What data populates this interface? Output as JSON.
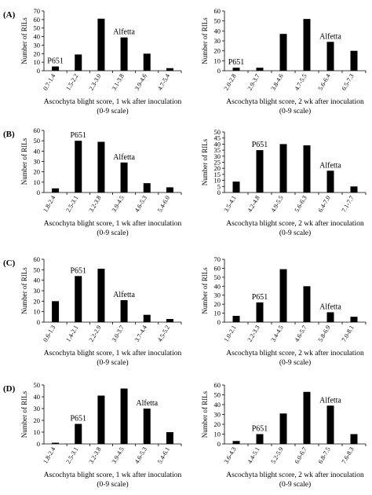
{
  "chart_data": [
    {
      "type": "bar",
      "row_label": "(A)",
      "categories": [
        "0.7-1.4",
        "1.5-2.2",
        "2.3-3.0",
        "3.1-3.8",
        "3.9-4.6",
        "4.7-5.4"
      ],
      "values": [
        5,
        19,
        61,
        39,
        20,
        3
      ],
      "ylim": [
        0,
        70
      ],
      "yticks": [
        0,
        10,
        20,
        30,
        40,
        50,
        60,
        70
      ],
      "ylabel": "Number of RILs",
      "xlabel_line1": "Ascochyta blight score, 1 wk after inoculation",
      "xlabel_line2": "(0-9 scale)",
      "annotations": [
        {
          "text": "P651",
          "category": "0.7-1.4"
        },
        {
          "text": "Alfetta",
          "category": "3.1-3.8"
        }
      ]
    },
    {
      "type": "bar",
      "row_label": "",
      "categories": [
        "2.0-2.8",
        "2.9-3.7",
        "3.8-4.6",
        "4.7-5.5",
        "5.6-6.4",
        "6.5-7.3"
      ],
      "values": [
        3,
        3,
        37,
        52,
        29,
        20
      ],
      "ylim": [
        0,
        60
      ],
      "yticks": [
        0,
        10,
        20,
        30,
        40,
        50,
        60
      ],
      "ylabel": "Number of RILs",
      "xlabel_line1": "Ascochyta blight score, 2 wk after inoculation",
      "xlabel_line2": "(0-9 scale)",
      "annotations": [
        {
          "text": "P651",
          "category": "2.0-2.8"
        },
        {
          "text": "Alfetta",
          "category": "5.6-6.4"
        }
      ]
    },
    {
      "type": "bar",
      "row_label": "(B)",
      "categories": [
        "1.8-2.4",
        "2.5-3.1",
        "3.2-3.8",
        "3.9-4.5",
        "4.6-5.3",
        "5.4-6.0"
      ],
      "values": [
        4,
        50,
        49,
        29,
        9,
        5
      ],
      "ylim": [
        0,
        60
      ],
      "yticks": [
        0,
        10,
        20,
        30,
        40,
        50,
        60
      ],
      "ylabel": "Number of RILs",
      "xlabel_line1": "Ascochyta blight score, 1 wk after inoculation",
      "xlabel_line2": "(0-9 scale)",
      "annotations": [
        {
          "text": "P651",
          "category": "2.5-3.1"
        },
        {
          "text": "Alfetta",
          "category": "3.9-4.5"
        }
      ]
    },
    {
      "type": "bar",
      "row_label": "",
      "categories": [
        "3.5-4.1",
        "4.2-4.8",
        "4.9-5.5",
        "5.6-6.3",
        "6.4-7.0",
        "7.1-7.7"
      ],
      "values": [
        9,
        35,
        40,
        39,
        18,
        5
      ],
      "ylim": [
        0,
        50
      ],
      "yticks": [
        0,
        5,
        10,
        15,
        20,
        25,
        30,
        35,
        40,
        45,
        50
      ],
      "ylabel": "Number of RILs",
      "xlabel_line1": "Ascochyta blight score, 2 wk after inoculation",
      "xlabel_line2": "(0-9 scale)",
      "annotations": [
        {
          "text": "P651",
          "category": "4.2-4.8"
        },
        {
          "text": "Alfetta",
          "category": "6.4-7.0"
        }
      ]
    },
    {
      "type": "bar",
      "row_label": "(C)",
      "categories": [
        "0.6-1.3",
        "1.4-2.1",
        "2.2-2.9",
        "3.0-3.7",
        "3.7-4.4",
        "4.5-5.2"
      ],
      "values": [
        20,
        44,
        51,
        21,
        7,
        3
      ],
      "ylim": [
        0,
        60
      ],
      "yticks": [
        0,
        10,
        20,
        30,
        40,
        50,
        60
      ],
      "ylabel": "Number of RILs",
      "xlabel_line1": "Ascochyta blight score, 1 wk after inoculation",
      "xlabel_line2": "(0-9 scale)",
      "annotations": [
        {
          "text": "P651",
          "category": "1.4-2.1"
        },
        {
          "text": "Alfetta",
          "category": "3.0-3.7"
        }
      ]
    },
    {
      "type": "bar",
      "row_label": "",
      "categories": [
        "1.0-2.1",
        "2.2-3.3",
        "3.4-4.5",
        "4.6-5.7",
        "5.8-6.9",
        "7.0-8.1"
      ],
      "values": [
        7,
        22,
        59,
        40,
        11,
        6
      ],
      "ylim": [
        0,
        70
      ],
      "yticks": [
        0,
        10,
        20,
        30,
        40,
        50,
        60,
        70
      ],
      "ylabel": "Number of RILs",
      "xlabel_line1": "Ascochyta blight score, 2 wk after inoculation",
      "xlabel_line2": "(0-9 scale)",
      "annotations": [
        {
          "text": "P651",
          "category": "2.2-3.3"
        },
        {
          "text": "Alfetta",
          "category": "5.8-6.9"
        }
      ]
    },
    {
      "type": "bar",
      "row_label": "(D)",
      "categories": [
        "1.8-2.4",
        "2.5-3.1",
        "3.2-3.8",
        "3.9-4.5",
        "4.6-5.3",
        "5.4-6.1"
      ],
      "values": [
        1,
        17,
        41,
        47,
        30,
        10
      ],
      "ylim": [
        0,
        50
      ],
      "yticks": [
        0,
        10,
        20,
        30,
        40,
        50
      ],
      "ylabel": "Number of RILs",
      "xlabel_line1": "Ascochyta blight score, 1 wk after inoculation",
      "xlabel_line2": "(0-9 scale)",
      "annotations": [
        {
          "text": "P651",
          "category": "2.5-3.1"
        },
        {
          "text": "Alfetta",
          "category": "4.6-5.3"
        }
      ]
    },
    {
      "type": "bar",
      "row_label": "",
      "categories": [
        "3.6-4.3",
        "4.4-5.1",
        "5.2-5.9",
        "6.0-6.7",
        "6.8-7.5",
        "7.6-8.3"
      ],
      "values": [
        3,
        10,
        31,
        53,
        39,
        10
      ],
      "ylim": [
        0,
        60
      ],
      "yticks": [
        0,
        10,
        20,
        30,
        40,
        50,
        60
      ],
      "ylabel": "Number of RILs",
      "xlabel_line1": "Ascochyta blight score, 2 wk after inoculation",
      "xlabel_line2": "(0-9 scale)",
      "annotations": [
        {
          "text": "P651",
          "category": "4.4-5.1"
        },
        {
          "text": "Alfetta",
          "category": "6.8-7.5"
        }
      ]
    }
  ]
}
